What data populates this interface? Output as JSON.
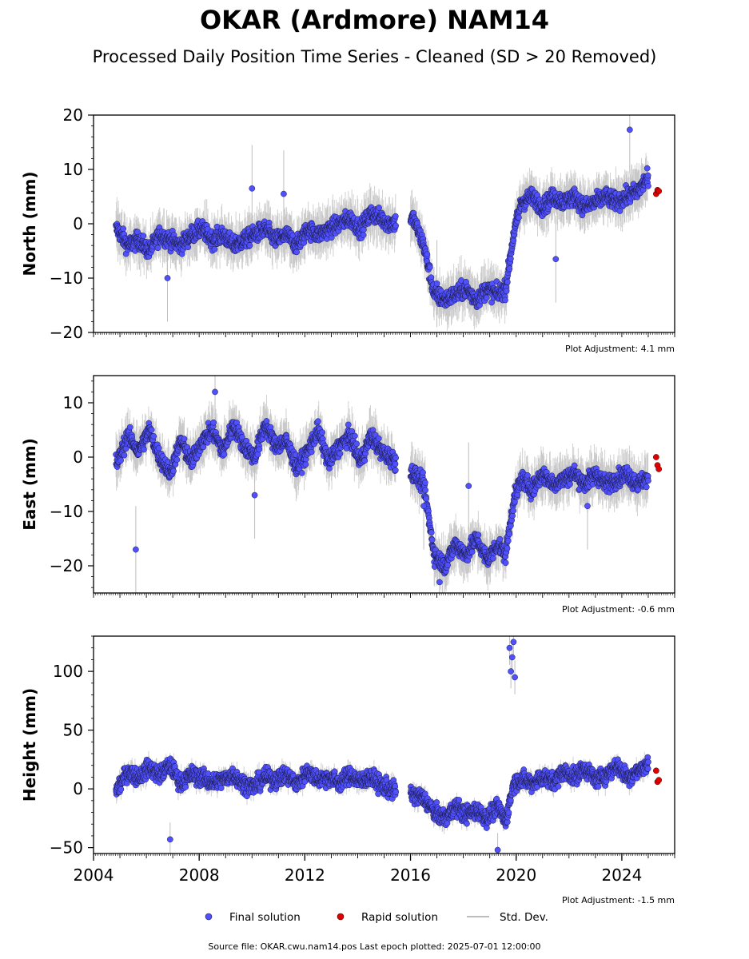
{
  "title": "OKAR (Ardmore) NAM14",
  "subtitle": "Processed Daily Position Time Series - Cleaned (SD > 20 Removed)",
  "footer": "Source file: OKAR.cwu.nam14.pos  Last epoch plotted: 2025-07-01 12:00:00",
  "colors": {
    "final": "#5050ff",
    "rapid": "#e00000",
    "stddev": "#bdbdbd",
    "marker_edge": "#1a1a40"
  },
  "legend": [
    {
      "label": "Final solution",
      "marker": "circle",
      "color": "#5050ff"
    },
    {
      "label": "Rapid solution",
      "marker": "circle",
      "color": "#e00000"
    },
    {
      "label": "Std. Dev.",
      "marker": "line",
      "color": "#bdbdbd"
    }
  ],
  "chart_data": [
    {
      "type": "scatter",
      "ylabel": "North (mm)",
      "xlim": [
        2004.0,
        2026.0
      ],
      "ylim": [
        -20,
        20
      ],
      "yticks": [
        -20,
        -10,
        0,
        10,
        20
      ],
      "ytick_labels": [
        "−20",
        "−10",
        "0",
        "10",
        "20"
      ],
      "show_xticklabels": false,
      "annotation": "Plot Adjustment: 4.1 mm",
      "series": [
        {
          "name": "Final solution",
          "role": "final",
          "x": [
            2004.9,
            2005.3,
            2005.7,
            2006.1,
            2006.5,
            2006.9,
            2007.3,
            2007.7,
            2008.1,
            2008.5,
            2008.9,
            2009.3,
            2009.7,
            2010.1,
            2010.5,
            2010.9,
            2011.3,
            2011.7,
            2012.1,
            2012.5,
            2012.9,
            2013.3,
            2013.7,
            2014.1,
            2014.5,
            2014.9,
            2015.2,
            2016.1,
            2016.5,
            2016.9,
            2017.3,
            2017.7,
            2018.1,
            2018.5,
            2018.9,
            2019.3,
            2019.6,
            2019.9,
            2020.2,
            2020.6,
            2021.0,
            2021.4,
            2021.8,
            2022.2,
            2022.6,
            2023.0,
            2023.4,
            2023.8,
            2024.2,
            2024.6,
            2024.9
          ],
          "y": [
            -1,
            -4,
            -3,
            -5,
            -2,
            -3,
            -4,
            -2,
            -1,
            -3,
            -2,
            -4,
            -3,
            -2,
            -1,
            -3,
            -2,
            -4,
            -1,
            -2,
            -1,
            0,
            1,
            -1,
            2,
            1,
            0,
            1,
            -4,
            -13,
            -14,
            -13,
            -12,
            -14,
            -12,
            -13,
            -12,
            -2,
            4,
            5,
            3,
            5,
            4,
            5,
            3,
            4,
            5,
            4,
            5,
            6,
            8
          ]
        },
        {
          "name": "Rapid solution",
          "role": "rapid",
          "x": [
            2025.3,
            2025.35,
            2025.4
          ],
          "y": [
            5.5,
            6.2,
            6.0
          ]
        }
      ],
      "stddev_range": [
        2.0,
        5.0
      ],
      "outliers": {
        "x": [
          2006.8,
          2010.0,
          2011.2,
          2017.0,
          2021.5,
          2024.3
        ],
        "y": [
          -10,
          6.5,
          5.5,
          -11,
          -6.5,
          17.3
        ]
      }
    },
    {
      "type": "scatter",
      "ylabel": "East (mm)",
      "xlim": [
        2004.0,
        2026.0
      ],
      "ylim": [
        -25,
        15
      ],
      "yticks": [
        -20,
        -10,
        0,
        10
      ],
      "ytick_labels": [
        "−20",
        "−10",
        "0",
        "10"
      ],
      "show_xticklabels": false,
      "annotation": "Plot Adjustment: -0.6 mm",
      "series": [
        {
          "name": "Final solution",
          "role": "final",
          "x": [
            2004.9,
            2005.3,
            2005.7,
            2006.1,
            2006.5,
            2006.9,
            2007.3,
            2007.7,
            2008.1,
            2008.5,
            2008.9,
            2009.3,
            2009.7,
            2010.1,
            2010.5,
            2010.9,
            2011.3,
            2011.7,
            2012.1,
            2012.5,
            2012.9,
            2013.3,
            2013.7,
            2014.1,
            2014.5,
            2014.9,
            2015.2,
            2016.1,
            2016.5,
            2016.9,
            2017.3,
            2017.7,
            2018.1,
            2018.5,
            2018.9,
            2019.3,
            2019.6,
            2019.9,
            2020.2,
            2020.6,
            2021.0,
            2021.4,
            2021.8,
            2022.2,
            2022.6,
            2023.0,
            2023.4,
            2023.8,
            2024.2,
            2024.6,
            2024.9
          ],
          "y": [
            -1,
            4,
            1,
            5,
            0,
            -3,
            3,
            -1,
            3,
            5,
            1,
            6,
            2,
            0,
            6,
            2,
            3,
            -2,
            1,
            5,
            -1,
            2,
            4,
            -1,
            4,
            1,
            0,
            -3,
            -5,
            -18,
            -20,
            -16,
            -18,
            -15,
            -19,
            -16,
            -18,
            -8,
            -4,
            -6,
            -3,
            -5,
            -4,
            -3,
            -5,
            -3,
            -5,
            -4,
            -3,
            -5,
            -4
          ]
        },
        {
          "name": "Rapid solution",
          "role": "rapid",
          "x": [
            2025.3,
            2025.35,
            2025.4
          ],
          "y": [
            0,
            -1.5,
            -2.2
          ]
        }
      ],
      "stddev_range": [
        2.0,
        5.0
      ],
      "outliers": {
        "x": [
          2005.6,
          2008.6,
          2010.1,
          2016.5,
          2017.1,
          2018.2,
          2022.7
        ],
        "y": [
          -17,
          12,
          -7,
          -9,
          -23,
          -5.3,
          -9
        ]
      }
    },
    {
      "type": "scatter",
      "ylabel": "Height (mm)",
      "xlim": [
        2004.0,
        2026.0
      ],
      "ylim": [
        -55,
        130
      ],
      "yticks": [
        -50,
        0,
        50,
        100
      ],
      "ytick_labels": [
        "−50",
        "0",
        "50",
        "100"
      ],
      "show_xticklabels": true,
      "xticks": [
        2004,
        2008,
        2012,
        2016,
        2020,
        2024
      ],
      "xtick_labels": [
        "2004",
        "2008",
        "2012",
        "2016",
        "2020",
        "2024"
      ],
      "annotation": "Plot Adjustment: -1.5 mm",
      "series": [
        {
          "name": "Final solution",
          "role": "final",
          "x": [
            2004.9,
            2005.3,
            2005.7,
            2006.1,
            2006.5,
            2006.9,
            2007.3,
            2007.7,
            2008.1,
            2008.5,
            2008.9,
            2009.3,
            2009.7,
            2010.1,
            2010.5,
            2010.9,
            2011.3,
            2011.7,
            2012.1,
            2012.5,
            2012.9,
            2013.3,
            2013.7,
            2014.1,
            2014.5,
            2014.9,
            2015.2,
            2016.1,
            2016.5,
            2016.9,
            2017.3,
            2017.7,
            2018.1,
            2018.5,
            2018.9,
            2019.3,
            2019.6,
            2019.9,
            2020.2,
            2020.6,
            2021.0,
            2021.4,
            2021.8,
            2022.2,
            2022.6,
            2023.0,
            2023.4,
            2023.8,
            2024.2,
            2024.6,
            2024.9
          ],
          "y": [
            0,
            15,
            10,
            18,
            12,
            20,
            5,
            12,
            10,
            5,
            8,
            12,
            4,
            2,
            10,
            8,
            12,
            4,
            15,
            8,
            10,
            5,
            12,
            6,
            10,
            3,
            0,
            -5,
            -8,
            -20,
            -25,
            -15,
            -22,
            -18,
            -25,
            -15,
            -28,
            5,
            8,
            5,
            10,
            6,
            15,
            10,
            18,
            8,
            12,
            20,
            10,
            15,
            20
          ]
        },
        {
          "name": "Rapid solution",
          "role": "rapid",
          "x": [
            2025.3,
            2025.35,
            2025.4
          ],
          "y": [
            15.5,
            6.0,
            7.5
          ]
        }
      ],
      "stddev_range": [
        4.0,
        9.0
      ],
      "outliers": {
        "x": [
          2006.9,
          2019.8,
          2019.85,
          2019.9,
          2019.95,
          2019.75,
          2019.3
        ],
        "y": [
          -43,
          100,
          112,
          125,
          95,
          120,
          -52
        ]
      }
    }
  ]
}
